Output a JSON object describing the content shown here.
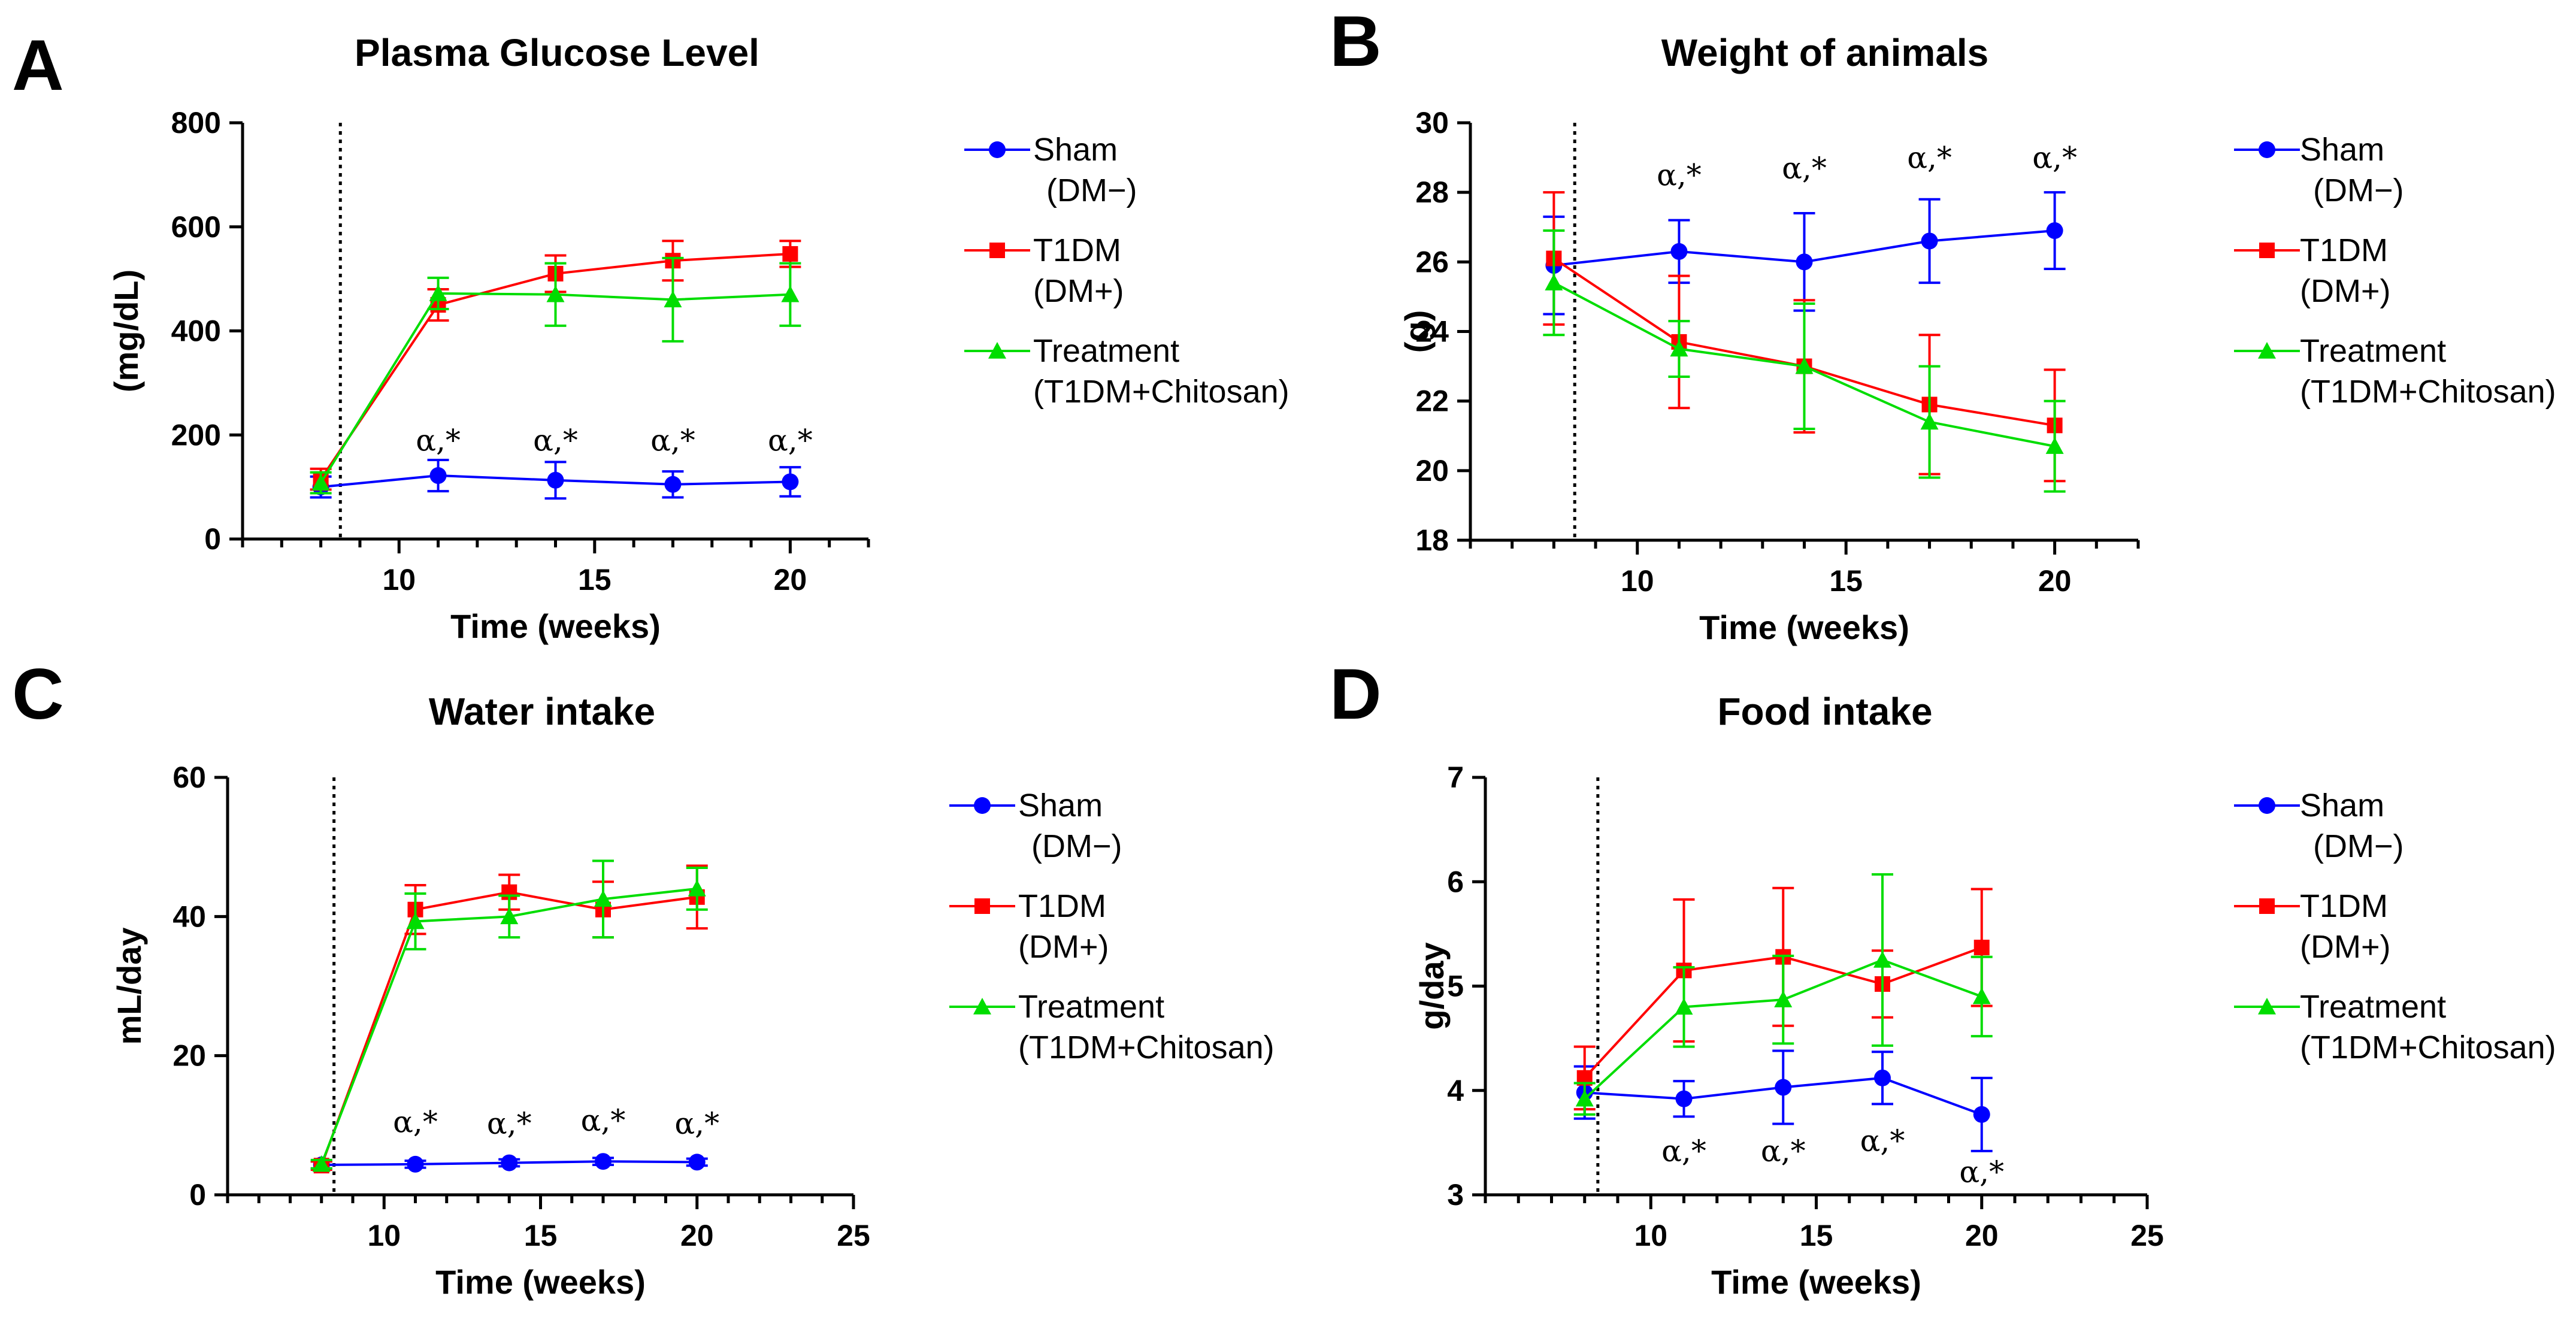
{
  "chart_data": [
    {
      "panel": "A",
      "type": "line",
      "title": "Plasma Glucose Level",
      "xlabel": "Time (weeks)",
      "ylabel": "(mg/dL)",
      "xlim": [
        6,
        22
      ],
      "ylim": [
        0,
        800
      ],
      "xticks": [
        10,
        15,
        20
      ],
      "yticks": [
        0,
        200,
        400,
        600,
        800
      ],
      "vline_x": 8.5,
      "x": [
        8,
        11,
        14,
        17,
        20
      ],
      "series": [
        {
          "name": "Sham",
          "legend_sub": "(DM−)",
          "color": "#0000ff",
          "marker": "circle",
          "values": [
            100,
            122,
            113,
            105,
            110
          ],
          "errors": [
            20,
            30,
            35,
            25,
            28
          ]
        },
        {
          "name": "T1DM",
          "legend_sub": "(DM+)",
          "color": "#ff0000",
          "marker": "square",
          "values": [
            115,
            450,
            510,
            535,
            548
          ],
          "errors": [
            20,
            30,
            35,
            38,
            25
          ]
        },
        {
          "name": "Treatment",
          "legend_sub": "(T1DM+Chitosan)",
          "color": "#00dd00",
          "marker": "triangle",
          "values": [
            108,
            472,
            470,
            460,
            470
          ],
          "errors": [
            20,
            30,
            60,
            80,
            60
          ]
        }
      ],
      "annotations": [
        {
          "x": 11,
          "y": 170,
          "text": "α,*"
        },
        {
          "x": 14,
          "y": 170,
          "text": "α,*"
        },
        {
          "x": 17,
          "y": 170,
          "text": "α,*"
        },
        {
          "x": 20,
          "y": 170,
          "text": "α,*"
        }
      ]
    },
    {
      "panel": "B",
      "type": "line",
      "title": "Weight of animals",
      "xlabel": "Time (weeks)",
      "ylabel": "(g)",
      "xlim": [
        6,
        22
      ],
      "ylim": [
        18,
        30
      ],
      "xticks": [
        10,
        15,
        20
      ],
      "yticks": [
        18,
        20,
        22,
        24,
        26,
        28,
        30
      ],
      "vline_x": 8.5,
      "x": [
        8,
        11,
        14,
        17,
        20
      ],
      "series": [
        {
          "name": "Sham",
          "legend_sub": "(DM−)",
          "color": "#0000ff",
          "marker": "circle",
          "values": [
            25.9,
            26.3,
            26.0,
            26.6,
            26.9
          ],
          "errors": [
            1.4,
            0.9,
            1.4,
            1.2,
            1.1
          ]
        },
        {
          "name": "T1DM",
          "legend_sub": "(DM+)",
          "color": "#ff0000",
          "marker": "square",
          "values": [
            26.1,
            23.7,
            23.0,
            21.9,
            21.3
          ],
          "errors": [
            1.9,
            1.9,
            1.9,
            2.0,
            1.6
          ]
        },
        {
          "name": "Treatment",
          "legend_sub": "(T1DM+Chitosan)",
          "color": "#00dd00",
          "marker": "triangle",
          "values": [
            25.4,
            23.5,
            23.0,
            21.4,
            20.7
          ],
          "errors": [
            1.5,
            0.8,
            1.8,
            1.6,
            1.3
          ]
        }
      ],
      "annotations": [
        {
          "x": 11,
          "y": 28.2,
          "text": "α,*"
        },
        {
          "x": 14,
          "y": 28.4,
          "text": "α,*"
        },
        {
          "x": 17,
          "y": 28.7,
          "text": "α,*"
        },
        {
          "x": 20,
          "y": 28.7,
          "text": "α,*"
        }
      ]
    },
    {
      "panel": "C",
      "type": "line",
      "title": "Water intake",
      "xlabel": "Time (weeks)",
      "ylabel": "mL/day",
      "xlim": [
        5,
        25
      ],
      "ylim": [
        0,
        60
      ],
      "xticks": [
        10,
        15,
        20,
        25
      ],
      "yticks": [
        0,
        20,
        40,
        60
      ],
      "vline_x": 8.4,
      "x": [
        8,
        11,
        14,
        17,
        20
      ],
      "series": [
        {
          "name": "Sham",
          "legend_sub": "(DM−)",
          "color": "#0000ff",
          "marker": "circle",
          "values": [
            4.3,
            4.4,
            4.6,
            4.8,
            4.7
          ],
          "errors": [
            0.5,
            0.5,
            0.5,
            0.5,
            0.5
          ]
        },
        {
          "name": "T1DM",
          "legend_sub": "(DM+)",
          "color": "#ff0000",
          "marker": "square",
          "values": [
            4.2,
            41.0,
            43.5,
            41.0,
            42.8
          ],
          "errors": [
            0.6,
            3.5,
            2.5,
            4.0,
            4.5
          ]
        },
        {
          "name": "Treatment",
          "legend_sub": "(T1DM+Chitosan)",
          "color": "#00dd00",
          "marker": "triangle",
          "values": [
            4.4,
            39.3,
            40.0,
            42.5,
            44.0
          ],
          "errors": [
            0.6,
            4.0,
            3.0,
            5.5,
            3.0
          ]
        }
      ],
      "annotations": [
        {
          "x": 11,
          "y": 9.0,
          "text": "α,*"
        },
        {
          "x": 14,
          "y": 8.8,
          "text": "α,*"
        },
        {
          "x": 17,
          "y": 9.2,
          "text": "α,*"
        },
        {
          "x": 20,
          "y": 8.8,
          "text": "α,*"
        }
      ]
    },
    {
      "panel": "D",
      "type": "line",
      "title": "Food intake",
      "xlabel": "Time (weeks)",
      "ylabel": "g/day",
      "xlim": [
        5,
        25
      ],
      "ylim": [
        3,
        7
      ],
      "xticks": [
        10,
        15,
        20,
        25
      ],
      "yticks": [
        3,
        4,
        5,
        6,
        7
      ],
      "vline_x": 8.4,
      "x": [
        8,
        11,
        14,
        17,
        20
      ],
      "series": [
        {
          "name": "Sham",
          "legend_sub": "(DM−)",
          "color": "#0000ff",
          "marker": "circle",
          "values": [
            3.98,
            3.92,
            4.03,
            4.12,
            3.77
          ],
          "errors": [
            0.25,
            0.17,
            0.35,
            0.25,
            0.35
          ]
        },
        {
          "name": "T1DM",
          "legend_sub": "(DM+)",
          "color": "#ff0000",
          "marker": "square",
          "values": [
            4.12,
            5.15,
            5.28,
            5.02,
            5.37
          ],
          "errors": [
            0.3,
            0.68,
            0.66,
            0.32,
            0.56
          ]
        },
        {
          "name": "Treatment",
          "legend_sub": "(T1DM+Chitosan)",
          "color": "#00dd00",
          "marker": "triangle",
          "values": [
            3.92,
            4.8,
            4.87,
            5.25,
            4.9
          ],
          "errors": [
            0.15,
            0.38,
            0.42,
            0.82,
            0.38
          ]
        }
      ],
      "annotations": [
        {
          "x": 11,
          "y": 3.32,
          "text": "α,*"
        },
        {
          "x": 14,
          "y": 3.32,
          "text": "α,*"
        },
        {
          "x": 17,
          "y": 3.42,
          "text": "α,*"
        },
        {
          "x": 20,
          "y": 3.12,
          "text": "α,*"
        }
      ]
    }
  ]
}
